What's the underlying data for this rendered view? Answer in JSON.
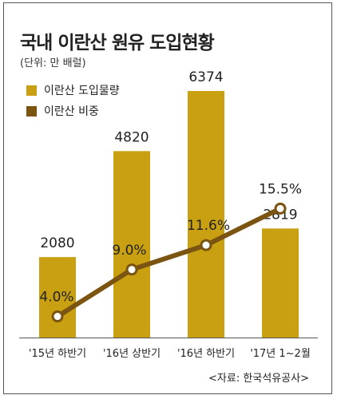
{
  "title": "국내 이란산 원유 도입현황",
  "subtitle": "(단위: 만 배럴)",
  "source": "<자료: 한국석유공사>",
  "colors": {
    "bar": "#C9A011",
    "line": "#7A5410",
    "marker_fill": "#FFFFFF"
  },
  "chart_data": {
    "type": "bar",
    "categories": [
      "'15년 하반기",
      "'16년 상반기",
      "'16년 하반기",
      "'17년 1~2월"
    ],
    "series": [
      {
        "name": "이란산 도입물량",
        "type": "bar",
        "values": [
          2080,
          4820,
          6374,
          2819
        ],
        "labels": [
          "2080",
          "4820",
          "6374",
          "2819"
        ]
      },
      {
        "name": "이란산 비중",
        "type": "line",
        "values": [
          4.0,
          9.0,
          11.6,
          15.5
        ],
        "labels": [
          "4.0%",
          "9.0%",
          "11.6%",
          "15.5%"
        ]
      }
    ],
    "legend": "top-left",
    "grid": false
  }
}
